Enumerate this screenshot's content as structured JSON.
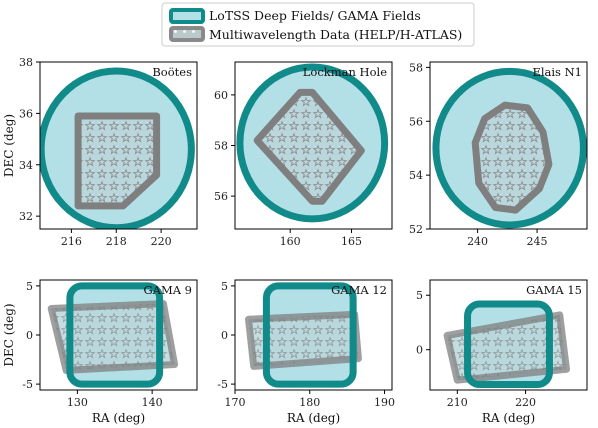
{
  "chart_data": {
    "type": "area",
    "legend": {
      "placement": "top-center",
      "entries": [
        {
          "label": "LoTSS Deep Fields/ GAMA Fields",
          "edge": "#118a8a",
          "fill": "#b2e0e6"
        },
        {
          "label": "Multiwavelength Data (HELP/H-ATLAS)",
          "edge": "#8a8a8a",
          "fill": "#b8d3d8",
          "hatch": "stars"
        }
      ]
    },
    "colors": {
      "lotss_edge": "#118a8a",
      "lotss_fill": "#b2e0e6",
      "help_edge": "#7f7f7f",
      "star": "#8a8a8a"
    },
    "panels": [
      {
        "title": "Boötes",
        "xlabel": "",
        "ylabel": "DEC (deg)",
        "xlim": [
          214.6,
          221.6
        ],
        "ylim": [
          31.5,
          38.0
        ],
        "xticks": [
          216,
          218,
          220
        ],
        "yticks": [
          32,
          34,
          36,
          38
        ],
        "lotss": {
          "shape": "circle",
          "center": [
            218.0,
            34.6
          ],
          "radius_deg": [
            3.35,
            3.05
          ]
        },
        "help": [
          [
            216.3,
            35.9
          ],
          [
            219.8,
            35.9
          ],
          [
            219.8,
            33.6
          ],
          [
            218.3,
            32.4
          ],
          [
            216.3,
            32.4
          ]
        ]
      },
      {
        "title": "Lockman Hole",
        "xlabel": "",
        "ylabel": "",
        "xlim": [
          155.5,
          168.3
        ],
        "ylim": [
          54.7,
          61.3
        ],
        "xticks": [
          160,
          165
        ],
        "yticks": [
          56,
          58,
          60
        ],
        "lotss": {
          "shape": "circle",
          "center": [
            161.8,
            58.1
          ],
          "radius_deg": [
            5.9,
            3.0
          ]
        },
        "help": [
          [
            157.3,
            58.2
          ],
          [
            160.8,
            60.1
          ],
          [
            161.8,
            60.1
          ],
          [
            165.8,
            57.8
          ],
          [
            162.6,
            55.8
          ],
          [
            161.8,
            55.8
          ]
        ]
      },
      {
        "title": "Elais N1",
        "xlabel": "",
        "ylabel": "",
        "xlim": [
          236.0,
          249.2
        ],
        "ylim": [
          52.0,
          58.2
        ],
        "xticks": [
          240,
          245
        ],
        "yticks": [
          52,
          54,
          56,
          58
        ],
        "lotss": {
          "shape": "circle",
          "center": [
            242.7,
            55.0
          ],
          "radius_deg": [
            6.2,
            2.85
          ]
        },
        "help": [
          [
            239.8,
            55.2
          ],
          [
            240.6,
            56.1
          ],
          [
            242.3,
            56.6
          ],
          [
            244.2,
            56.5
          ],
          [
            245.5,
            55.6
          ],
          [
            246.0,
            54.4
          ],
          [
            245.2,
            53.5
          ],
          [
            243.2,
            52.7
          ],
          [
            241.5,
            52.8
          ],
          [
            240.1,
            53.7
          ]
        ]
      },
      {
        "title": "GAMA 9",
        "xlabel": "RA (deg)",
        "ylabel": "DEC (deg)",
        "xlim": [
          125.0,
          146.0
        ],
        "ylim": [
          -5.6,
          5.6
        ],
        "xticks": [
          130,
          140
        ],
        "yticks": [
          -5,
          0,
          5
        ],
        "lotss": {
          "shape": "rect",
          "bounds": [
            129.0,
            141.0,
            -5.0,
            5.0
          ]
        },
        "help": [
          [
            126.5,
            2.7
          ],
          [
            141.5,
            3.2
          ],
          [
            143.0,
            -3.0
          ],
          [
            128.5,
            -3.6
          ]
        ]
      },
      {
        "title": "GAMA 12",
        "xlabel": "RA (deg)",
        "ylabel": "",
        "xlim": [
          170.0,
          191.0
        ],
        "ylim": [
          -5.6,
          5.6
        ],
        "xticks": [
          170,
          180,
          190
        ],
        "yticks": [
          -5,
          0,
          5
        ],
        "lotss": {
          "shape": "rect",
          "bounds": [
            174.2,
            185.8,
            -5.0,
            5.0
          ]
        },
        "help": [
          [
            171.8,
            1.6
          ],
          [
            186.0,
            2.1
          ],
          [
            186.5,
            -2.4
          ],
          [
            172.5,
            -3.2
          ]
        ]
      },
      {
        "title": "GAMA 15",
        "xlabel": "RA (deg)",
        "ylabel": "",
        "xlim": [
          206.0,
          229.0
        ],
        "ylim": [
          -3.7,
          6.4
        ],
        "xticks": [
          210,
          220
        ],
        "yticks": [
          0,
          5
        ],
        "lotss": {
          "shape": "rect",
          "bounds": [
            211.5,
            223.5,
            -3.2,
            4.2
          ]
        },
        "help": [
          [
            208.5,
            1.3
          ],
          [
            225.0,
            3.2
          ],
          [
            226.0,
            -1.8
          ],
          [
            210.0,
            -2.8
          ]
        ]
      }
    ]
  }
}
